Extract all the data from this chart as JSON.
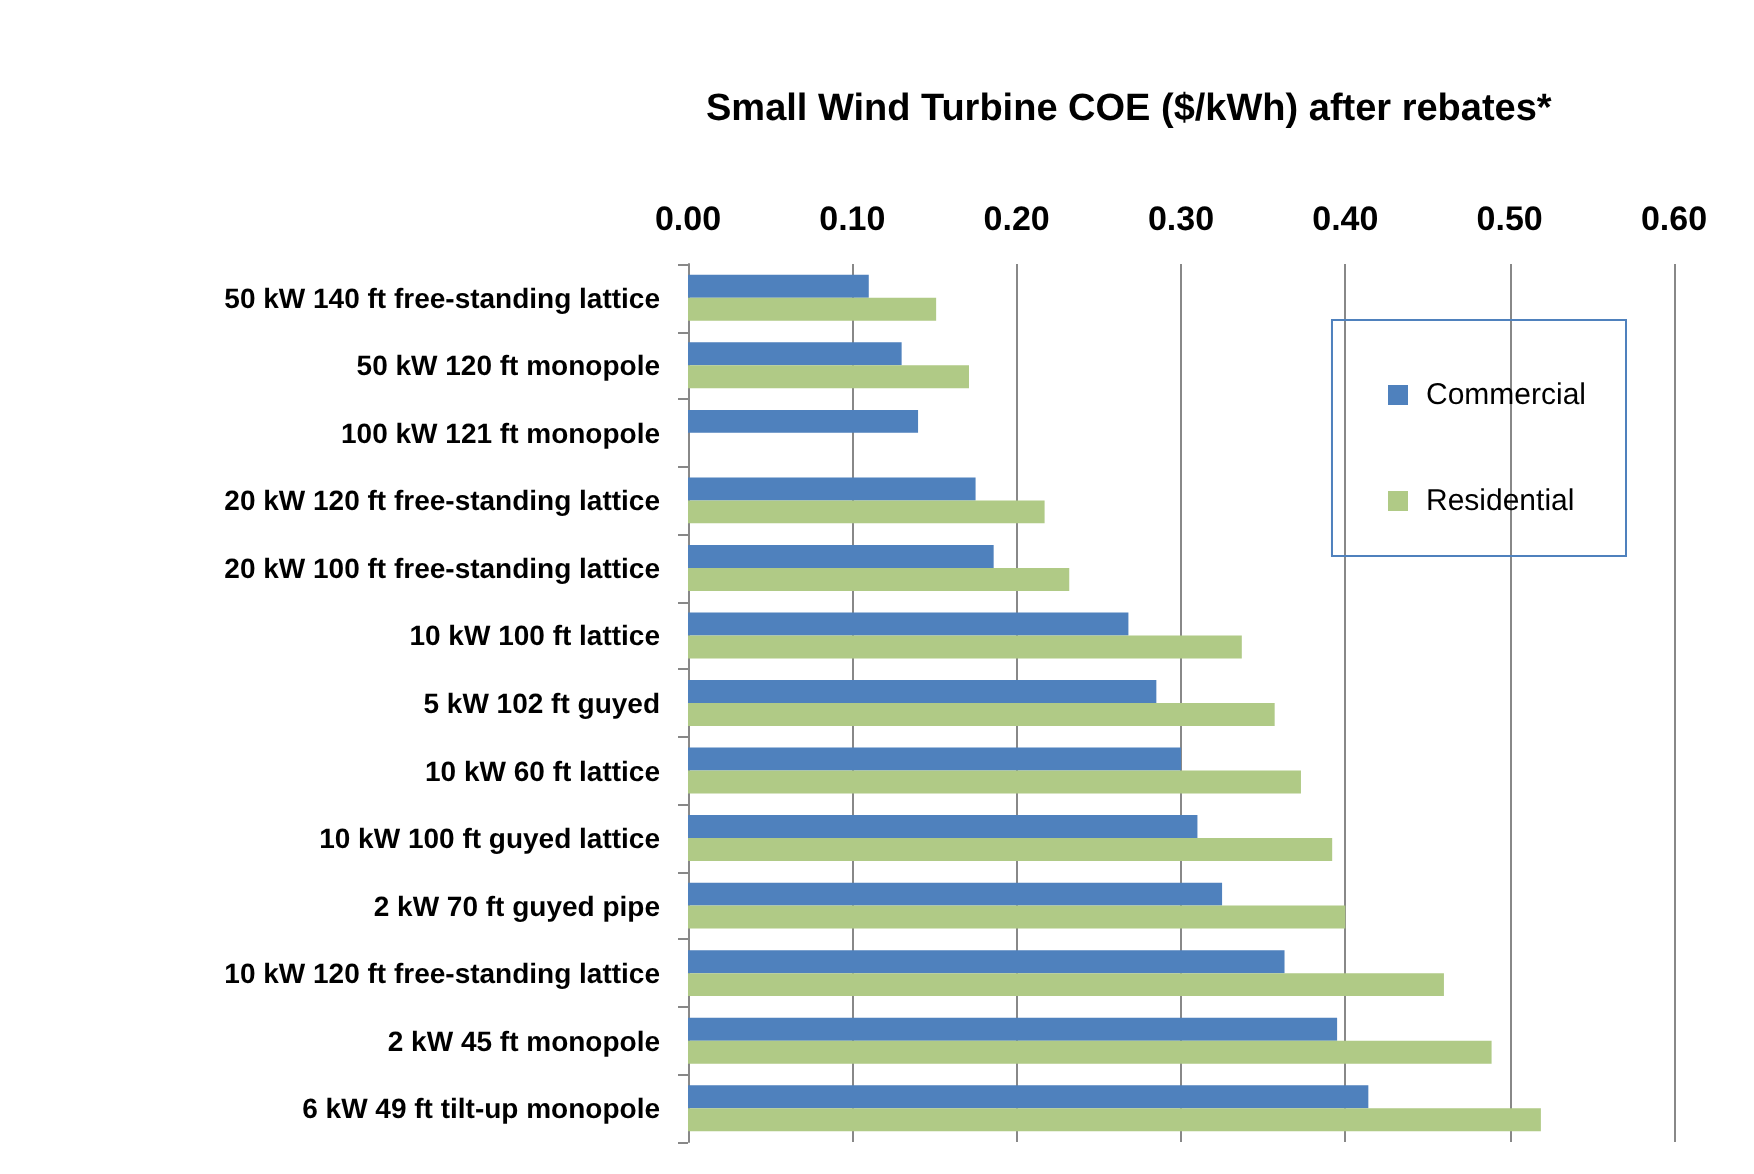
{
  "chart_data": {
    "type": "bar",
    "orientation": "horizontal",
    "title": "Small Wind Turbine COE ($/kWh) after rebates*",
    "categories": [
      "50 kW 140 ft free-standing lattice",
      "50 kW 120 ft monopole",
      "100 kW 121 ft monopole",
      "20 kW 120 ft free-standing lattice",
      "20 kW 100 ft free-standing lattice",
      "10 kW 100 ft lattice",
      "5 kW 102 ft guyed",
      "10 kW 60 ft lattice",
      "10 kW 100 ft guyed lattice",
      "2 kW 70 ft guyed pipe",
      "10 kW 120 ft free-standing lattice",
      "2 kW 45 ft monopole",
      "6 kW 49 ft tilt-up monopole"
    ],
    "series": [
      {
        "name": "Commercial",
        "color": "#4f81bd",
        "values": [
          0.11,
          0.13,
          0.14,
          0.175,
          0.186,
          0.268,
          0.285,
          0.3,
          0.31,
          0.325,
          0.363,
          0.395,
          0.414
        ]
      },
      {
        "name": "Residential",
        "color": "#b0ca86",
        "values": [
          0.151,
          0.171,
          null,
          0.217,
          0.232,
          0.337,
          0.357,
          0.373,
          0.392,
          0.4,
          0.46,
          0.489,
          0.519
        ]
      }
    ],
    "xlim": [
      0,
      0.6
    ],
    "xticks": [
      {
        "value": 0,
        "label": "0.00"
      },
      {
        "value": 0.1,
        "label": "0.10"
      },
      {
        "value": 0.2,
        "label": "0.20"
      },
      {
        "value": 0.3,
        "label": "0.30"
      },
      {
        "value": 0.4,
        "label": "0.40"
      },
      {
        "value": 0.5,
        "label": "0.50"
      },
      {
        "value": 0.6,
        "label": "0.60"
      }
    ],
    "grid": "x",
    "legend": "top right"
  }
}
